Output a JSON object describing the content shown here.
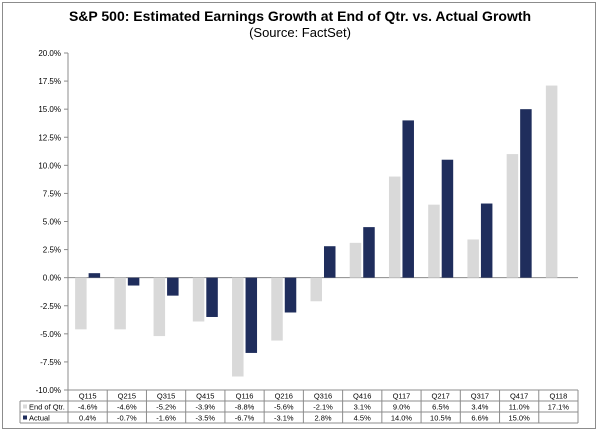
{
  "chart_data": {
    "type": "bar",
    "title": "S&P 500: Estimated Earnings Growth  at End of Qtr. vs. Actual Growth",
    "subtitle": "(Source: FactSet)",
    "categories": [
      "Q115",
      "Q215",
      "Q315",
      "Q415",
      "Q116",
      "Q216",
      "Q316",
      "Q416",
      "Q117",
      "Q217",
      "Q317",
      "Q417",
      "Q118"
    ],
    "ylim": [
      -10,
      20
    ],
    "yticks": [
      -10,
      -7.5,
      -5,
      -2.5,
      0,
      2.5,
      5,
      7.5,
      10,
      12.5,
      15,
      17.5,
      20
    ],
    "ytick_labels": [
      "-10.0%",
      "-7.5%",
      "-5.0%",
      "-2.5%",
      "0.0%",
      "2.5%",
      "5.0%",
      "7.5%",
      "10.0%",
      "12.5%",
      "15.0%",
      "17.5%",
      "20.0%"
    ],
    "grid": false,
    "legend": "data-table",
    "series": [
      {
        "name": "End of Qtr.",
        "color": "#d9d9d9",
        "values": [
          -4.6,
          -4.6,
          -5.2,
          -3.9,
          -8.8,
          -5.6,
          -2.1,
          3.1,
          9.0,
          6.5,
          3.4,
          11.0,
          17.1
        ],
        "labels": [
          "-4.6%",
          "-4.6%",
          "-5.2%",
          "-3.9%",
          "-8.8%",
          "-5.6%",
          "-2.1%",
          "3.1%",
          "9.0%",
          "6.5%",
          "3.4%",
          "11.0%",
          "17.1%"
        ]
      },
      {
        "name": "Actual",
        "color": "#1f2d5c",
        "values": [
          0.4,
          -0.7,
          -1.6,
          -3.5,
          -6.7,
          -3.1,
          2.8,
          4.5,
          14.0,
          10.5,
          6.6,
          15.0,
          null
        ],
        "labels": [
          "0.4%",
          "-0.7%",
          "-1.6%",
          "-3.5%",
          "-6.7%",
          "-3.1%",
          "2.8%",
          "4.5%",
          "14.0%",
          "10.5%",
          "6.6%",
          "15.0%",
          ""
        ]
      }
    ]
  }
}
